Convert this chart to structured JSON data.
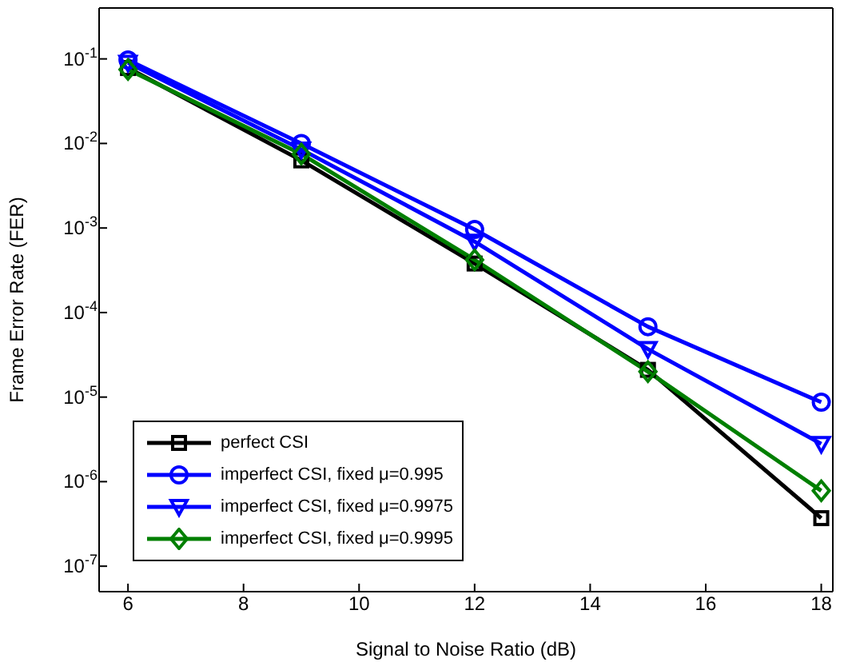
{
  "chart_data": {
    "type": "line",
    "xlabel": "Signal to Noise Ratio (dB)",
    "ylabel": "Frame Error Rate (FER)",
    "log": "y",
    "grid": false,
    "legend": "bottom left",
    "line_style": "solid",
    "x": [
      6,
      9,
      12,
      15,
      18
    ],
    "xlim": [
      5.5,
      18.2
    ],
    "xticks": [
      6,
      8,
      10,
      12,
      14,
      16,
      18
    ],
    "ylim": [
      5e-08,
      0.4
    ],
    "yticks": [
      {
        "value": 1e-07,
        "label": "10$^{-7}$"
      },
      {
        "value": 1e-06,
        "label": "10$^{-6}$"
      },
      {
        "value": 1e-05,
        "label": "10$^{-5}$"
      },
      {
        "value": 0.0001,
        "label": "10$^{-4}$"
      },
      {
        "value": 0.001,
        "label": "10$^{-3}$"
      },
      {
        "value": 0.01,
        "label": "10$^{-2}$"
      },
      {
        "value": 0.1,
        "label": "10$^{-1}$"
      }
    ],
    "series": [
      {
        "name": "perfect CSI",
        "color": "#000000",
        "marker": "square",
        "values": [
          0.078,
          0.0063,
          0.00038,
          2.1e-05,
          3.7e-07
        ]
      },
      {
        "name": "imperfect CSI, fixed μ=0.995",
        "color": "#0000ff",
        "marker": "circle",
        "values": [
          0.097,
          0.01,
          0.00096,
          6.8e-05,
          8.7e-06
        ]
      },
      {
        "name": "imperfect CSI, fixed μ=0.9975",
        "color": "#0000ff",
        "marker": "triangle",
        "values": [
          0.09,
          0.0085,
          0.00069,
          3.7e-05,
          2.8e-06
        ]
      },
      {
        "name": "imperfect CSI, fixed μ=0.9995",
        "color": "#007f00",
        "marker": "diamond",
        "values": [
          0.075,
          0.0075,
          0.00042,
          2e-05,
          7.8e-07
        ]
      }
    ]
  }
}
